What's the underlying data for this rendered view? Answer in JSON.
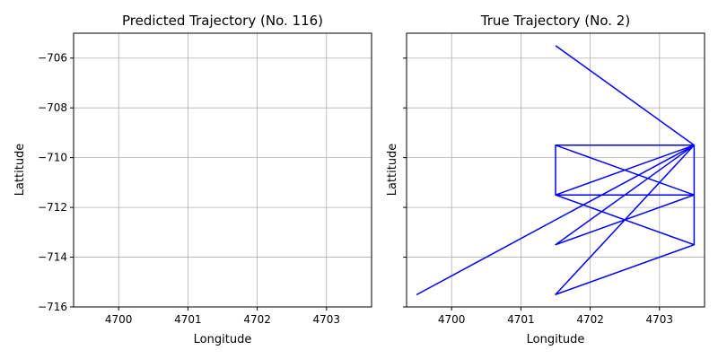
{
  "chart_data": [
    {
      "type": "line",
      "title": "Predicted Trajectory (No. 116)",
      "xlabel": "Longitude",
      "ylabel": "Lattitude",
      "xlim": [
        4699.35,
        4703.65
      ],
      "ylim": [
        -716,
        -705
      ],
      "xticks": [
        4700,
        4701,
        4702,
        4703
      ],
      "yticks": [
        -716,
        -714,
        -712,
        -710,
        -708,
        -706
      ],
      "grid": true,
      "series": [
        {
          "color": "#0000ff",
          "points": []
        }
      ]
    },
    {
      "type": "line",
      "title": "True Trajectory (No. 2)",
      "xlabel": "Longitude",
      "ylabel": "Lattitude",
      "xlim": [
        4699.35,
        4703.65
      ],
      "ylim": [
        -716,
        -705
      ],
      "xticks": [
        4700,
        4701,
        4702,
        4703
      ],
      "yticks": [
        -716,
        -714,
        -712,
        -710,
        -708,
        -706
      ],
      "grid": true,
      "series": [
        {
          "color": "#0000ff",
          "points": [
            [
              4701.5,
              -705.5
            ],
            [
              4703.5,
              -709.5
            ],
            [
              4701.5,
              -709.5
            ],
            [
              4703.5,
              -711.5
            ],
            [
              4701.5,
              -711.5
            ],
            [
              4703.5,
              -709.5
            ],
            [
              4701.5,
              -711.5
            ],
            [
              4703.5,
              -711.5
            ],
            [
              4701.5,
              -713.5
            ],
            [
              4703.5,
              -709.5
            ],
            [
              4701.5,
              -715.5
            ],
            [
              4703.5,
              -713.5
            ],
            [
              4703.5,
              -709.5
            ],
            [
              4699.5,
              -715.5
            ],
            [
              4703.5,
              -709.5
            ],
            [
              4701.5,
              -711.5
            ],
            [
              4701.5,
              -709.5
            ],
            [
              4701.5,
              -711.5
            ],
            [
              4703.5,
              -713.5
            ]
          ]
        }
      ]
    }
  ]
}
